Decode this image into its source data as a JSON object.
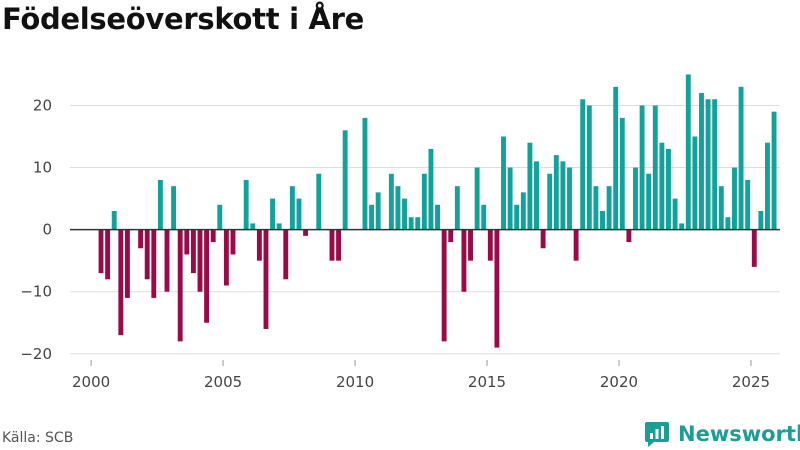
{
  "title": "Födelseöverskott i Åre",
  "source": "Källa: SCB",
  "brand": {
    "name": "Newsworthy",
    "icon": "newsworthy-logo-icon",
    "color": "#1a9e95"
  },
  "colors": {
    "positive": "#0fa39b",
    "negative": "#9b0a46",
    "grid": "#dddddd",
    "zero": "#333333"
  },
  "chart_data": {
    "type": "bar",
    "title": "Födelseöverskott i Åre",
    "xlabel": "",
    "ylabel": "",
    "frequency": "quarterly",
    "start": "2000-Q1",
    "xlim": [
      1999.2,
      2026.1
    ],
    "ylim": [
      -21,
      27
    ],
    "x_ticks": [
      2000,
      2005,
      2010,
      2015,
      2020,
      2025
    ],
    "y_ticks": [
      -20,
      -10,
      0,
      10,
      20
    ],
    "y_tick_labels": [
      "−20",
      "−10",
      "0",
      "10",
      "20"
    ],
    "grid": true,
    "values": [
      0,
      -7,
      -8,
      3,
      -17,
      -11,
      0,
      -3,
      -8,
      -11,
      8,
      -10,
      7,
      -18,
      -4,
      -7,
      -10,
      -15,
      -2,
      4,
      -9,
      -4,
      0,
      8,
      1,
      -5,
      -16,
      5,
      1,
      -8,
      7,
      5,
      -1,
      0,
      9,
      0,
      -5,
      -5,
      16,
      0,
      0,
      18,
      4,
      6,
      0,
      9,
      7,
      5,
      2,
      2,
      9,
      13,
      4,
      -18,
      -2,
      7,
      -10,
      -5,
      10,
      4,
      -5,
      -19,
      15,
      10,
      4,
      6,
      14,
      11,
      -3,
      9,
      12,
      11,
      10,
      -5,
      21,
      20,
      7,
      3,
      7,
      23,
      18,
      -2,
      10,
      20,
      9,
      20,
      14,
      13,
      5,
      1,
      25,
      15,
      22,
      21,
      21,
      7,
      2,
      10,
      23,
      8,
      -6,
      3,
      14,
      19
    ]
  }
}
